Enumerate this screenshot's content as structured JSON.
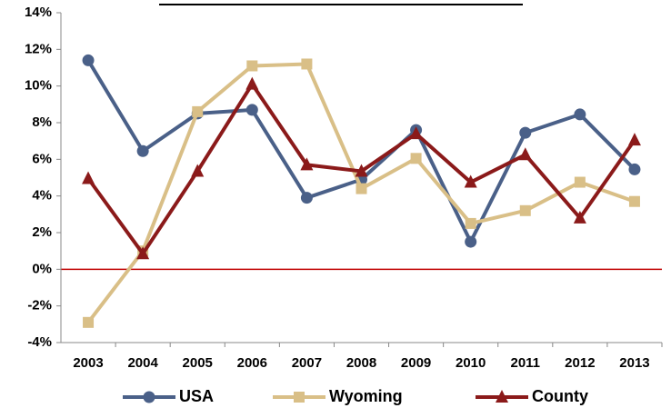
{
  "chart_data": {
    "type": "line",
    "categories": [
      "2003",
      "2004",
      "2005",
      "2006",
      "2007",
      "2008",
      "2009",
      "2010",
      "2011",
      "2012",
      "2013"
    ],
    "series": [
      {
        "name": "USA",
        "color": "#4a6088",
        "marker": "circle",
        "values": [
          11.4,
          6.45,
          8.5,
          8.7,
          3.9,
          4.9,
          7.6,
          1.5,
          7.45,
          8.45,
          5.45
        ]
      },
      {
        "name": "Wyoming",
        "color": "#d9bf87",
        "marker": "square",
        "values": [
          -2.9,
          1.0,
          8.6,
          11.1,
          11.2,
          4.4,
          6.05,
          2.5,
          3.2,
          4.75,
          3.7
        ]
      },
      {
        "name": "County",
        "color": "#8b1a1a",
        "marker": "triangle",
        "values": [
          4.95,
          0.85,
          5.35,
          10.1,
          5.7,
          5.35,
          7.4,
          4.75,
          6.25,
          2.8,
          7.05
        ]
      }
    ],
    "ylim": [
      -4,
      14
    ],
    "yticks": [
      {
        "value": -4,
        "label": "-4%"
      },
      {
        "value": -2,
        "label": "-2%"
      },
      {
        "value": 0,
        "label": "0%"
      },
      {
        "value": 2,
        "label": "2%"
      },
      {
        "value": 4,
        "label": "4%"
      },
      {
        "value": 6,
        "label": "6%"
      },
      {
        "value": 8,
        "label": "8%"
      },
      {
        "value": 10,
        "label": "10%"
      },
      {
        "value": 12,
        "label": "12%"
      },
      {
        "value": 14,
        "label": "14%"
      }
    ],
    "zero_line_color": "#c00000",
    "legend": "bottom"
  }
}
